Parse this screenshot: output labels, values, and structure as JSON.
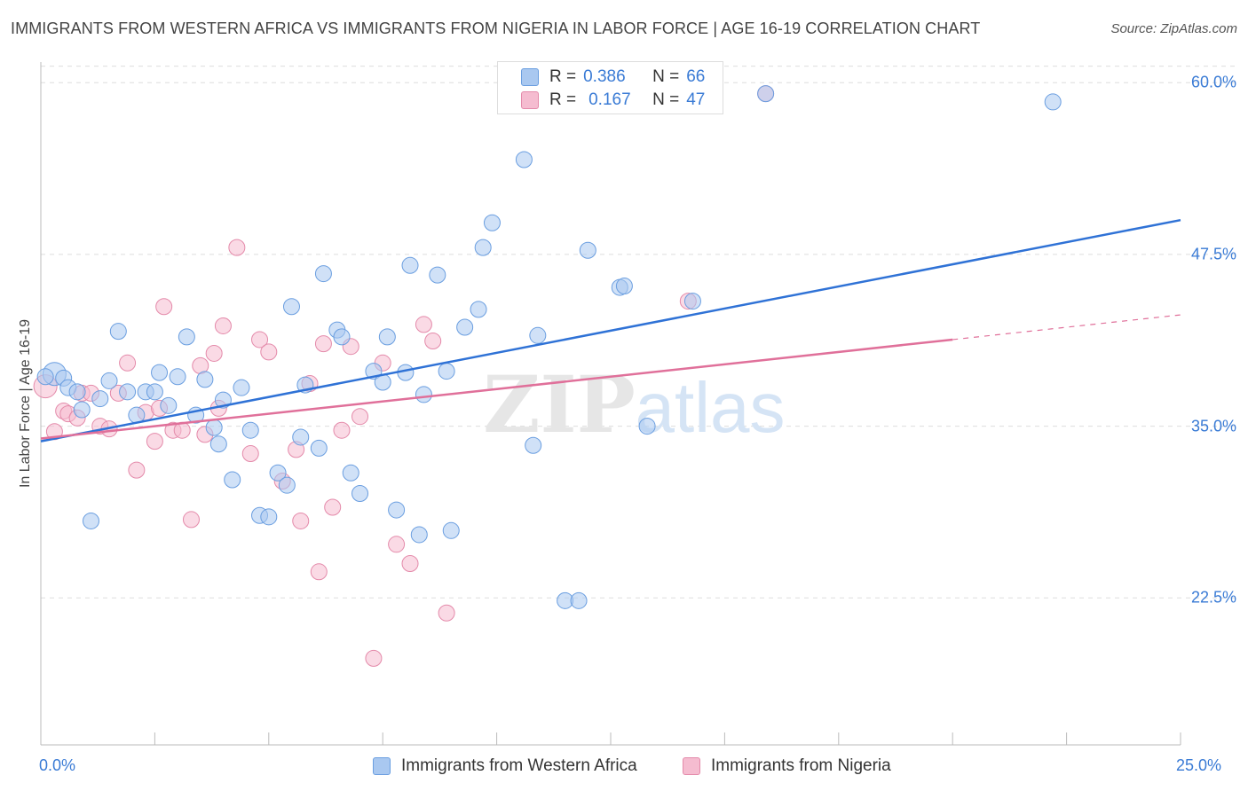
{
  "title": "IMMIGRANTS FROM WESTERN AFRICA VS IMMIGRANTS FROM NIGERIA IN LABOR FORCE | AGE 16-19 CORRELATION CHART",
  "source": "Source: ZipAtlas.com",
  "watermark": {
    "zip": "ZIP",
    "atlas": "atlas"
  },
  "legend": {
    "rows": [
      {
        "r_label": "R =",
        "r_value": "0.386",
        "n_label": "N =",
        "n_value": "66"
      },
      {
        "r_label": "R =",
        "r_value": "0.167",
        "n_label": "N =",
        "n_value": "47"
      }
    ]
  },
  "bottom_legend": {
    "items": [
      {
        "label": "Immigrants from Western Africa"
      },
      {
        "label": "Immigrants from Nigeria"
      }
    ]
  },
  "colors": {
    "blue_fill": "#a9c8f0",
    "blue_stroke": "#6a9ee0",
    "blue_line": "#2f72d6",
    "pink_fill": "#f5bcd0",
    "pink_stroke": "#e48aaa",
    "pink_line": "#e0709a",
    "tick_label": "#3a7bd5",
    "grid": "#dddddd"
  },
  "chart_data": {
    "type": "scatter",
    "title": "IMMIGRANTS FROM WESTERN AFRICA VS IMMIGRANTS FROM NIGERIA IN LABOR FORCE | AGE 16-19 CORRELATION CHART",
    "xlabel": "",
    "ylabel": "In Labor Force | Age 16-19",
    "xlim": [
      0,
      25
    ],
    "ylim": [
      11.8,
      61.5
    ],
    "x_tick_labels": [
      "0.0%",
      "25.0%"
    ],
    "y_ticks": [
      22.5,
      35.0,
      47.5,
      60.0
    ],
    "y_tick_labels": [
      "22.5%",
      "35.0%",
      "47.5%",
      "60.0%"
    ],
    "grid": true,
    "legend_position": "top-center",
    "series": [
      {
        "name": "Immigrants from Western Africa",
        "R": 0.386,
        "N": 66,
        "trend": {
          "x": [
            0,
            25
          ],
          "y": [
            33.9,
            50.0
          ]
        },
        "points": [
          [
            0.3,
            38.8
          ],
          [
            0.5,
            38.5
          ],
          [
            0.6,
            37.8
          ],
          [
            0.8,
            37.5
          ],
          [
            0.9,
            36.2
          ],
          [
            1.1,
            28.1
          ],
          [
            1.3,
            37.0
          ],
          [
            1.5,
            38.3
          ],
          [
            1.7,
            41.9
          ],
          [
            1.9,
            37.5
          ],
          [
            2.1,
            35.8
          ],
          [
            2.3,
            37.5
          ],
          [
            2.5,
            37.5
          ],
          [
            2.6,
            38.9
          ],
          [
            2.8,
            36.5
          ],
          [
            3.0,
            38.6
          ],
          [
            3.2,
            41.5
          ],
          [
            3.4,
            35.8
          ],
          [
            3.6,
            38.4
          ],
          [
            3.8,
            34.9
          ],
          [
            3.9,
            33.7
          ],
          [
            4.0,
            36.9
          ],
          [
            4.2,
            31.1
          ],
          [
            4.4,
            37.8
          ],
          [
            4.6,
            34.7
          ],
          [
            4.8,
            28.5
          ],
          [
            5.0,
            28.4
          ],
          [
            5.2,
            31.6
          ],
          [
            5.4,
            30.7
          ],
          [
            5.5,
            43.7
          ],
          [
            5.7,
            34.2
          ],
          [
            5.8,
            38.0
          ],
          [
            6.1,
            33.4
          ],
          [
            6.2,
            46.1
          ],
          [
            6.5,
            42.0
          ],
          [
            6.6,
            41.5
          ],
          [
            6.8,
            31.6
          ],
          [
            7.0,
            30.1
          ],
          [
            7.3,
            39.0
          ],
          [
            7.5,
            38.2
          ],
          [
            7.6,
            41.5
          ],
          [
            7.8,
            28.9
          ],
          [
            8.0,
            38.9
          ],
          [
            8.1,
            46.7
          ],
          [
            8.3,
            27.1
          ],
          [
            8.4,
            37.3
          ],
          [
            8.7,
            46.0
          ],
          [
            8.9,
            39.0
          ],
          [
            9.0,
            27.4
          ],
          [
            9.3,
            42.2
          ],
          [
            9.6,
            43.5
          ],
          [
            9.7,
            48.0
          ],
          [
            9.9,
            49.8
          ],
          [
            10.6,
            54.4
          ],
          [
            10.8,
            33.6
          ],
          [
            10.9,
            41.6
          ],
          [
            11.5,
            22.3
          ],
          [
            11.8,
            22.3
          ],
          [
            12.0,
            47.8
          ],
          [
            12.7,
            45.1
          ],
          [
            12.8,
            45.2
          ],
          [
            13.3,
            35.0
          ],
          [
            14.3,
            44.1
          ],
          [
            15.9,
            59.2
          ],
          [
            22.2,
            58.6
          ],
          [
            0.1,
            38.6
          ]
        ]
      },
      {
        "name": "Immigrants from Nigeria",
        "R": 0.167,
        "N": 47,
        "trend": {
          "x": [
            0,
            20
          ],
          "y": [
            34.1,
            41.3
          ]
        },
        "trend_dashed": {
          "x": [
            20,
            25
          ],
          "y": [
            41.3,
            43.1
          ]
        },
        "points": [
          [
            0.1,
            37.9
          ],
          [
            0.3,
            34.6
          ],
          [
            0.5,
            36.1
          ],
          [
            0.6,
            35.9
          ],
          [
            0.8,
            35.6
          ],
          [
            0.9,
            37.4
          ],
          [
            1.1,
            37.4
          ],
          [
            1.3,
            35.0
          ],
          [
            1.5,
            34.8
          ],
          [
            1.7,
            37.4
          ],
          [
            1.9,
            39.6
          ],
          [
            2.1,
            31.8
          ],
          [
            2.3,
            36.0
          ],
          [
            2.5,
            33.9
          ],
          [
            2.6,
            36.3
          ],
          [
            2.7,
            43.7
          ],
          [
            2.9,
            34.7
          ],
          [
            3.1,
            34.7
          ],
          [
            3.3,
            28.2
          ],
          [
            3.5,
            39.4
          ],
          [
            3.6,
            34.4
          ],
          [
            3.8,
            40.3
          ],
          [
            3.9,
            36.3
          ],
          [
            4.0,
            42.3
          ],
          [
            4.3,
            48.0
          ],
          [
            4.6,
            33.0
          ],
          [
            4.8,
            41.3
          ],
          [
            5.0,
            40.4
          ],
          [
            5.3,
            31.0
          ],
          [
            5.6,
            33.3
          ],
          [
            5.7,
            28.1
          ],
          [
            5.9,
            38.1
          ],
          [
            6.1,
            24.4
          ],
          [
            6.2,
            41.0
          ],
          [
            6.4,
            29.1
          ],
          [
            6.6,
            34.7
          ],
          [
            6.8,
            40.8
          ],
          [
            7.0,
            35.7
          ],
          [
            7.3,
            18.1
          ],
          [
            7.5,
            39.6
          ],
          [
            7.8,
            26.4
          ],
          [
            8.1,
            25.0
          ],
          [
            8.4,
            42.4
          ],
          [
            8.6,
            41.2
          ],
          [
            8.9,
            21.4
          ],
          [
            14.2,
            44.1
          ],
          [
            15.9,
            59.2
          ]
        ]
      }
    ]
  }
}
